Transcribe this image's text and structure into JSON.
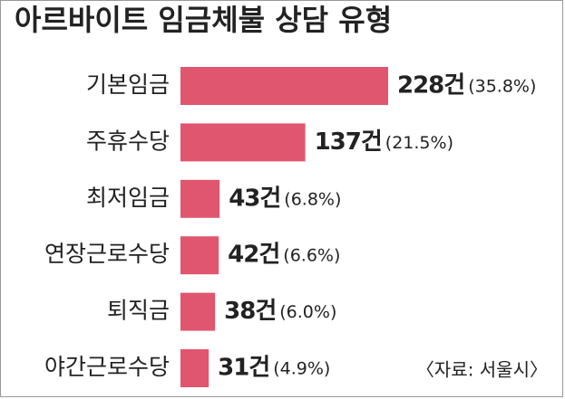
{
  "chart_data": {
    "type": "bar",
    "orientation": "horizontal",
    "title": "아르바이트 임금체불 상담 유형",
    "categories": [
      "기본임금",
      "주휴수당",
      "최저임금",
      "연장근로수당",
      "퇴직금",
      "야간근로수당"
    ],
    "values": [
      228,
      137,
      43,
      42,
      38,
      31
    ],
    "value_labels": [
      "228건",
      "137건",
      "43건",
      "42건",
      "38건",
      "31건"
    ],
    "shares": [
      35.8,
      21.5,
      6.8,
      6.6,
      6.0,
      4.9
    ],
    "share_labels": [
      "(35.8%)",
      "(21.5%)",
      "(6.8%)",
      "(6.6%)",
      "(6.0%)",
      "(4.9%)"
    ],
    "color": "#e0566e",
    "source": "〈자료: 서울시〉"
  }
}
